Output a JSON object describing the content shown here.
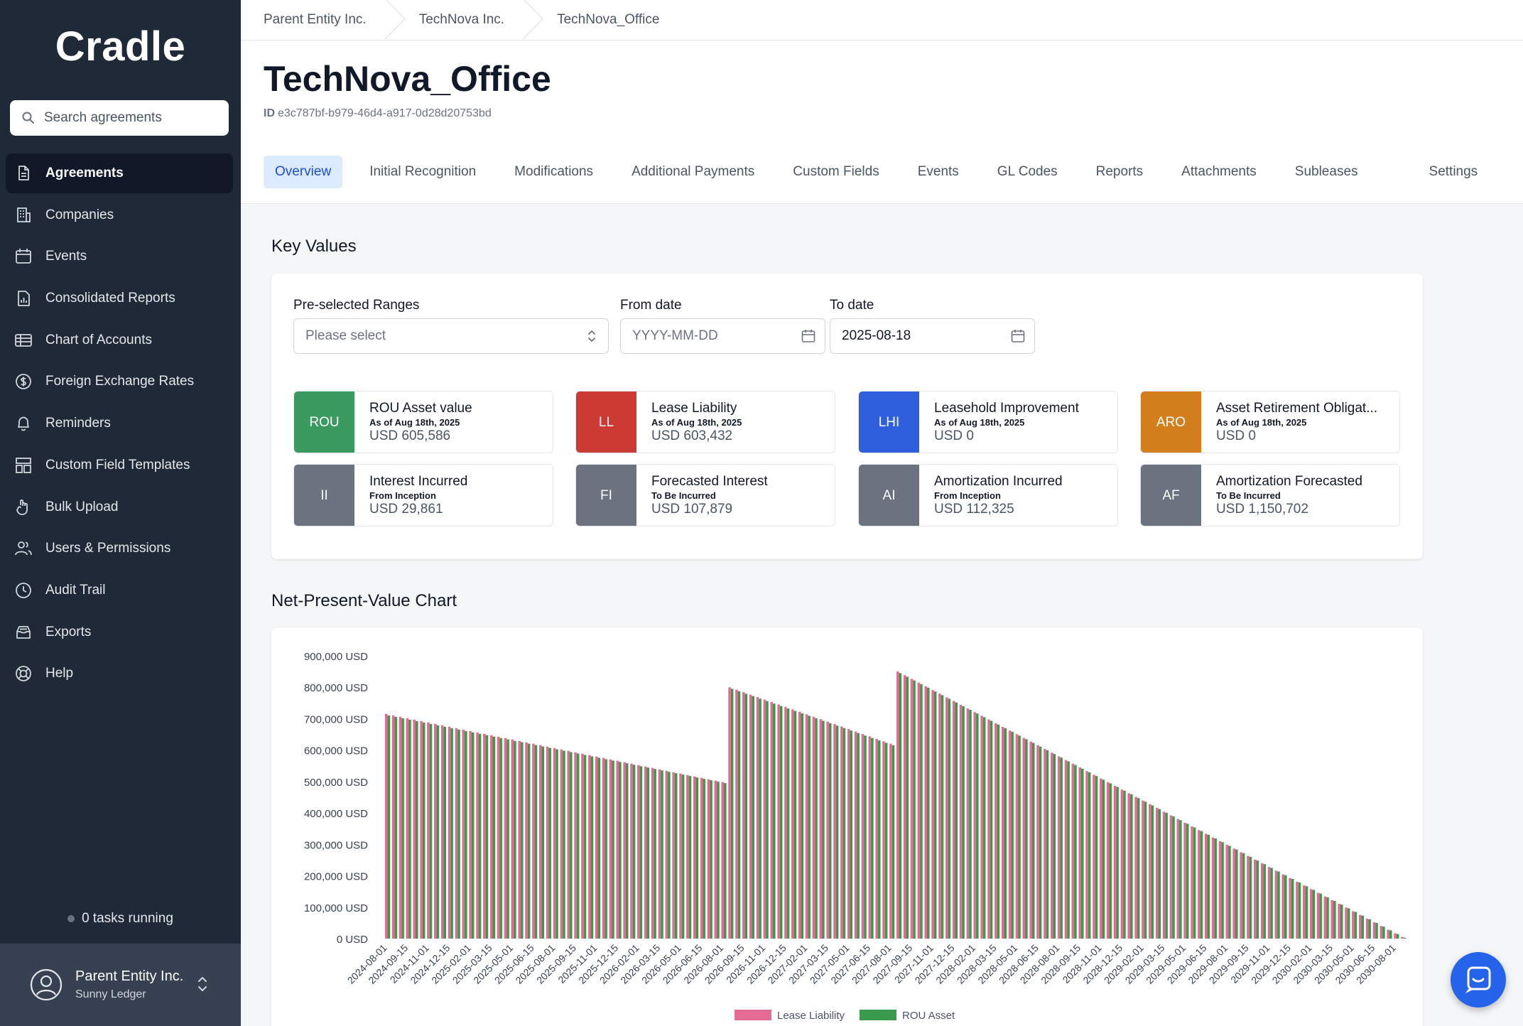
{
  "sidebar": {
    "logo": "Cradle",
    "search_placeholder": "Search agreements",
    "items": [
      {
        "label": "Agreements",
        "icon": "document-icon",
        "active": true
      },
      {
        "label": "Companies",
        "icon": "building-icon"
      },
      {
        "label": "Events",
        "icon": "calendar-icon"
      },
      {
        "label": "Consolidated Reports",
        "icon": "report-icon"
      },
      {
        "label": "Chart of Accounts",
        "icon": "table-icon"
      },
      {
        "label": "Foreign Exchange Rates",
        "icon": "dollar-icon"
      },
      {
        "label": "Reminders",
        "icon": "bell-icon"
      },
      {
        "label": "Custom Field Templates",
        "icon": "template-icon"
      },
      {
        "label": "Bulk Upload",
        "icon": "upload-icon"
      },
      {
        "label": "Users & Permissions",
        "icon": "users-icon"
      },
      {
        "label": "Audit Trail",
        "icon": "clock-icon"
      },
      {
        "label": "Exports",
        "icon": "archive-icon"
      },
      {
        "label": "Help",
        "icon": "lifebuoy-icon"
      }
    ],
    "tasks": "0 tasks running",
    "user": {
      "org": "Parent Entity Inc.",
      "name": "Sunny Ledger"
    }
  },
  "breadcrumbs": [
    "Parent Entity Inc.",
    "TechNova Inc.",
    "TechNova_Office"
  ],
  "page": {
    "title": "TechNova_Office",
    "id_label": "ID",
    "id_value": "e3c787bf-b979-46d4-a917-0d28d20753bd"
  },
  "tabs": [
    "Overview",
    "Initial Recognition",
    "Modifications",
    "Additional Payments",
    "Custom Fields",
    "Events",
    "GL Codes",
    "Reports",
    "Attachments",
    "Subleases",
    "Settings"
  ],
  "key_values": {
    "title": "Key Values",
    "range_label": "Pre-selected Ranges",
    "range_placeholder": "Please select",
    "from_label": "From date",
    "from_placeholder": "YYYY-MM-DD",
    "to_label": "To date",
    "to_value": "2025-08-18",
    "cards": [
      {
        "badge": "ROU",
        "color": "#3b9a5f",
        "title": "ROU Asset value",
        "sub": "As of Aug 18th, 2025",
        "value": "USD 605,586"
      },
      {
        "badge": "LL",
        "color": "#cc3a34",
        "title": "Lease Liability",
        "sub": "As of Aug 18th, 2025",
        "value": "USD 603,432"
      },
      {
        "badge": "LHI",
        "color": "#2f5fdc",
        "title": "Leasehold Improvement",
        "sub": "As of Aug 18th, 2025",
        "value": "USD 0"
      },
      {
        "badge": "ARO",
        "color": "#d47f1e",
        "title": "Asset Retirement Obligat...",
        "sub": "As of Aug 18th, 2025",
        "value": "USD 0"
      },
      {
        "badge": "II",
        "color": "#6b7280",
        "title": "Interest Incurred",
        "sub": "From Inception",
        "value": "USD 29,861"
      },
      {
        "badge": "FI",
        "color": "#6b7280",
        "title": "Forecasted Interest",
        "sub": "To Be Incurred",
        "value": "USD 107,879"
      },
      {
        "badge": "AI",
        "color": "#6b7280",
        "title": "Amortization Incurred",
        "sub": "From Inception",
        "value": "USD 112,325"
      },
      {
        "badge": "AF",
        "color": "#6b7280",
        "title": "Amortization Forecasted",
        "sub": "To Be Incurred",
        "value": "USD 1,150,702"
      }
    ]
  },
  "chart_title": "Net-Present-Value Chart",
  "chart_data": {
    "type": "bar",
    "ylim": [
      0,
      900000
    ],
    "y_ticks": [
      "900,000 USD",
      "800,000 USD",
      "700,000 USD",
      "600,000 USD",
      "500,000 USD",
      "400,000 USD",
      "300,000 USD",
      "200,000 USD",
      "100,000 USD",
      "0 USD"
    ],
    "x_tick_labels": [
      "2024-08-01",
      "2024-09-15",
      "2024-11-01",
      "2024-12-15",
      "2025-02-01",
      "2025-03-15",
      "2025-05-01",
      "2025-06-15",
      "2025-08-01",
      "2025-09-15",
      "2025-11-01",
      "2025-12-15",
      "2026-02-01",
      "2026-03-15",
      "2026-05-01",
      "2026-06-15",
      "2026-08-01",
      "2026-09-15",
      "2026-11-01",
      "2026-12-15",
      "2027-02-01",
      "2027-03-15",
      "2027-05-01",
      "2027-06-15",
      "2027-08-01",
      "2027-09-15",
      "2027-11-01",
      "2027-12-15",
      "2028-02-01",
      "2028-03-15",
      "2028-05-01",
      "2028-06-15",
      "2028-08-01",
      "2028-09-15",
      "2028-11-01",
      "2028-12-15",
      "2029-02-01",
      "2029-03-15",
      "2029-05-01",
      "2029-06-15",
      "2029-08-01",
      "2029-09-15",
      "2029-11-01",
      "2029-12-15",
      "2030-02-01",
      "2030-03-15",
      "2030-05-01",
      "2030-06-15",
      "2030-08-01"
    ],
    "series_colors": {
      "Lease Liability": "#e46b93",
      "ROU Asset": "#3a9a4c"
    },
    "legend": [
      "Lease Liability",
      "ROU Asset"
    ],
    "legend_position": "bottom",
    "segments": [
      {
        "start": "2024-08-01",
        "end": "2026-08-01",
        "ll_start": 715000,
        "ll_end": 498000,
        "rou_start": 710000,
        "rou_end": 495000
      },
      {
        "start": "2026-08-15",
        "end": "2027-08-01",
        "ll_start": 800000,
        "ll_end": 620000,
        "rou_start": 795000,
        "rou_end": 615000
      },
      {
        "start": "2027-08-15",
        "end": "2030-08-15",
        "ll_start": 850000,
        "ll_end": 5000,
        "rou_start": 845000,
        "rou_end": 3000
      }
    ]
  },
  "help_button_icon": "chat-help-icon"
}
